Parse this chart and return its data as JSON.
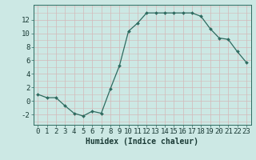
{
  "x": [
    0,
    1,
    2,
    3,
    4,
    5,
    6,
    7,
    8,
    9,
    10,
    11,
    12,
    13,
    14,
    15,
    16,
    17,
    18,
    19,
    20,
    21,
    22,
    23
  ],
  "y": [
    1.0,
    0.5,
    0.5,
    -0.7,
    -1.8,
    -2.2,
    -1.5,
    -1.8,
    1.8,
    5.2,
    10.3,
    11.5,
    13.0,
    13.0,
    13.0,
    13.0,
    13.0,
    13.0,
    12.5,
    10.7,
    9.3,
    9.1,
    7.3,
    5.7
  ],
  "xlabel": "Humidex (Indice chaleur)",
  "xlim": [
    -0.5,
    23.5
  ],
  "ylim": [
    -3.5,
    14.2
  ],
  "xticks": [
    0,
    1,
    2,
    3,
    4,
    5,
    6,
    7,
    8,
    9,
    10,
    11,
    12,
    13,
    14,
    15,
    16,
    17,
    18,
    19,
    20,
    21,
    22,
    23
  ],
  "yticks": [
    -2,
    0,
    2,
    4,
    6,
    8,
    10,
    12
  ],
  "bg_color": "#cce8e4",
  "grid_color_major": "#d4b8b8",
  "grid_color_minor": "#e0cccc",
  "line_color": "#2e6b60",
  "marker_color": "#2e6b60",
  "xlabel_fontsize": 7,
  "tick_fontsize": 6.5
}
